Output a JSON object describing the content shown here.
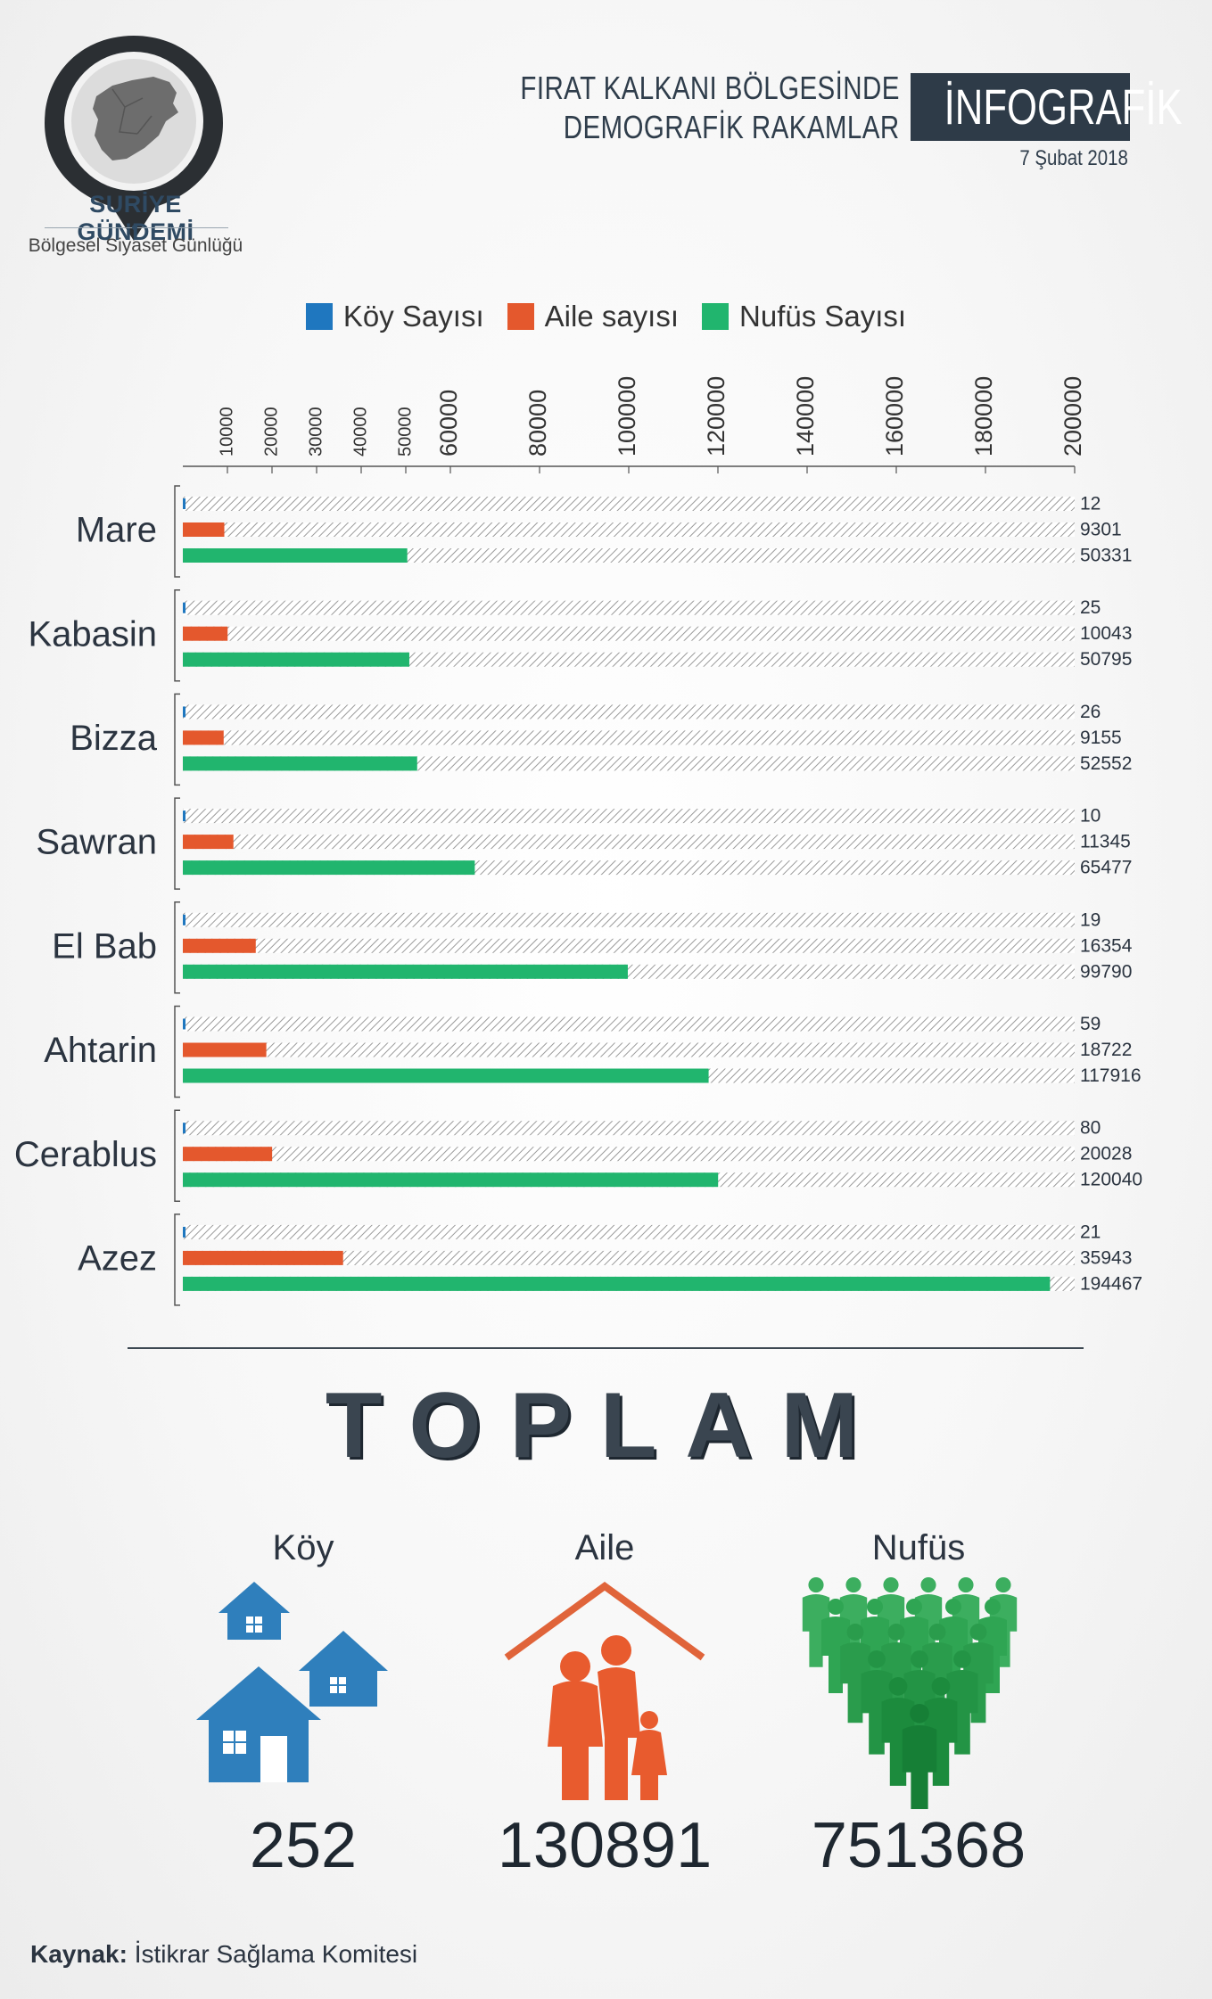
{
  "brand": {
    "name": "SURİYE GÜNDEMİ",
    "tagline": "Bölgesel Siyaset Günlüğü"
  },
  "header": {
    "title_line1": "FIRAT KALKANI BÖLGESİNDE",
    "title_line2": "DEMOGRAFİK RAKAMLAR",
    "badge": "İNFOGRAFİK",
    "date": "7 Şubat 2018"
  },
  "colors": {
    "koy": "#1f77bf",
    "aile": "#e4582d",
    "nufus": "#21b56e",
    "dark": "#2e3b48"
  },
  "chart_data": {
    "type": "bar",
    "orientation": "horizontal",
    "categories": [
      "Mare",
      "Kabasin",
      "Bizza",
      "Sawran",
      "El Bab",
      "Ahtarin",
      "Cerablus",
      "Azez"
    ],
    "series": [
      {
        "name": "Köy Sayısı",
        "values": [
          12,
          25,
          26,
          10,
          19,
          59,
          80,
          21
        ]
      },
      {
        "name": "Aile sayısı",
        "values": [
          9301,
          10043,
          9155,
          11345,
          16354,
          18722,
          20028,
          35943
        ]
      },
      {
        "name": "Nufüs Sayısı",
        "values": [
          50331,
          50795,
          52552,
          65477,
          99790,
          117916,
          120040,
          194467
        ]
      }
    ],
    "axis_ticks": [
      "10000",
      "20000",
      "30000",
      "40000",
      "50000",
      "60000",
      "80000",
      "100000",
      "120000",
      "140000",
      "160000",
      "180000",
      "200000"
    ],
    "xlim": [
      0,
      200000
    ],
    "legend_position": "top"
  },
  "totals": {
    "title": "TOPLAM",
    "koy_label": "Köy",
    "koy_value": "252",
    "aile_label": "Aile",
    "aile_value": "130891",
    "nufus_label": "Nufüs",
    "nufus_value": "751368",
    "koy_icon": "houses-icon",
    "aile_icon": "family-house-icon",
    "nufus_icon": "crowd-icon"
  },
  "source": {
    "label": "Kaynak:",
    "text": "İstikrar Sağlama Komitesi"
  }
}
